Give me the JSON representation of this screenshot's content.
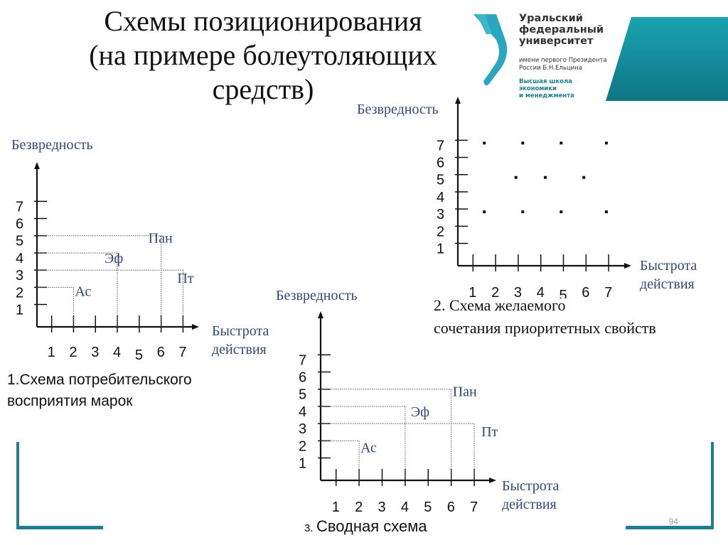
{
  "slide": {
    "title_lines": [
      "Схемы позиционирования",
      "(на примере болеутоляющих",
      "средств)"
    ],
    "page_number": "94",
    "accent_color": "#1f7f8f"
  },
  "logo": {
    "name_lines": [
      "Уральский",
      "федеральный",
      "университет"
    ],
    "sub_lines": [
      "имени первого Президента",
      "России Б.Н.Ельцина"
    ],
    "school_lines": [
      "Высшая школа",
      "экономики",
      "и менеджмента"
    ],
    "color": "#1a9bb0"
  },
  "captions": {
    "chart1_line1": "1.Схема потребительского",
    "chart1_line2": "восприятия марок",
    "chart2_line1": "2. Схема желаемого",
    "chart2_line2": "сочетания приоритетных свойств",
    "chart3_prefix": "3.",
    "chart3_text": "Сводная схема"
  },
  "chart_data": [
    {
      "type": "scatter",
      "title": "1.Схема потребительского восприятия марок",
      "xlabel": "Быстрота действия",
      "ylabel": "Безвредность",
      "x_ticks": [
        1,
        2,
        3,
        4,
        5,
        6,
        7
      ],
      "y_ticks": [
        1,
        2,
        3,
        4,
        5,
        6,
        7
      ],
      "xlim": [
        0,
        7
      ],
      "ylim": [
        0,
        7
      ],
      "points": [
        {
          "label": "Ас",
          "x": 2,
          "y": 2
        },
        {
          "label": "Эф",
          "x": 4,
          "y": 4
        },
        {
          "label": "Пан",
          "x": 6,
          "y": 5
        },
        {
          "label": "Пт",
          "x": 7,
          "y": 3
        }
      ]
    },
    {
      "type": "scatter",
      "title": "2. Схема желаемого сочетания приоритетных свойств",
      "xlabel": "Быстрота действия",
      "ylabel": "Безвредность",
      "x_ticks": [
        1,
        2,
        3,
        4,
        5,
        6,
        7
      ],
      "y_ticks": [
        1,
        2,
        3,
        4,
        5,
        6,
        7
      ],
      "xlim": [
        0,
        7
      ],
      "ylim": [
        0,
        7
      ],
      "points": [
        {
          "x": 1.5,
          "y": 7
        },
        {
          "x": 3.2,
          "y": 7
        },
        {
          "x": 4.9,
          "y": 7
        },
        {
          "x": 6.9,
          "y": 7
        },
        {
          "x": 2.9,
          "y": 5
        },
        {
          "x": 4.2,
          "y": 5
        },
        {
          "x": 5.9,
          "y": 5
        },
        {
          "x": 1.5,
          "y": 3
        },
        {
          "x": 3.2,
          "y": 3
        },
        {
          "x": 4.9,
          "y": 3
        },
        {
          "x": 6.9,
          "y": 3
        }
      ]
    },
    {
      "type": "scatter",
      "title": "3. Сводная схема",
      "xlabel": "Быстрота действия",
      "ylabel": "Безвредность",
      "x_ticks": [
        1,
        2,
        3,
        4,
        5,
        6,
        7
      ],
      "y_ticks": [
        1,
        2,
        3,
        4,
        5,
        6,
        7
      ],
      "xlim": [
        0,
        7
      ],
      "ylim": [
        0,
        7
      ],
      "points": [
        {
          "label": "Ас",
          "x": 2,
          "y": 2
        },
        {
          "label": "Эф",
          "x": 4,
          "y": 4
        },
        {
          "label": "Пан",
          "x": 6,
          "y": 5
        },
        {
          "label": "Пт",
          "x": 7,
          "y": 3
        }
      ]
    }
  ],
  "axis_text": {
    "ylabel": "Безвредность",
    "xlabel_line1": "Быстрота",
    "xlabel_line2": "действия"
  }
}
